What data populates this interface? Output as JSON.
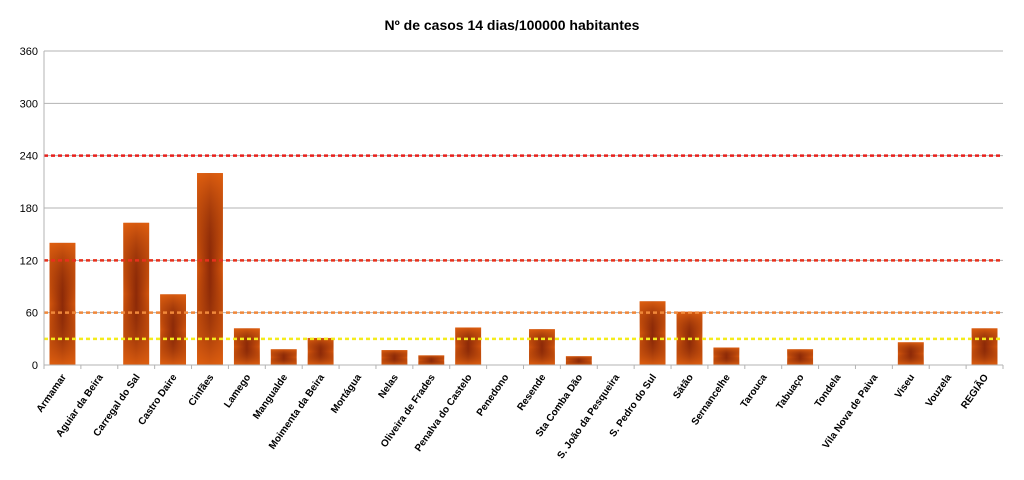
{
  "chart_data": {
    "type": "bar",
    "title": "Nº de casos 14 dias/100000 habitantes",
    "xlabel": "",
    "ylabel": "",
    "ylim": [
      0,
      360
    ],
    "yticks": [
      0,
      60,
      120,
      180,
      240,
      300,
      360
    ],
    "grid": true,
    "categories": [
      "Armamar",
      "Aguiar da Beira",
      "Carregal do Sal",
      "Castro Daire",
      "Cinfães",
      "Lamego",
      "Mangualde",
      "Moimenta da Beira",
      "Mortágua",
      "Nelas",
      "Oliveira de Frades",
      "Penalva do Castelo",
      "Penedono",
      "Resende",
      "Sta Comba Dão",
      "S. João da Pesqueira",
      "S. Pedro do Sul",
      "Sátão",
      "Sernancelhe",
      "Tarouca",
      "Tabuaço",
      "Tondela",
      "Vila Nova de Paiva",
      "Viseu",
      "Vouzela",
      "REGIÃO"
    ],
    "values": [
      140,
      0,
      163,
      81,
      220,
      42,
      18,
      31,
      0,
      17,
      11,
      43,
      0,
      41,
      10,
      0,
      73,
      61,
      20,
      0,
      18,
      0,
      0,
      26,
      0,
      42
    ],
    "bar_color": "#c8480a",
    "threshold_lines": [
      {
        "value": 240,
        "color": "#e8201c"
      },
      {
        "value": 120,
        "color": "#e8301c"
      },
      {
        "value": 60,
        "color": "#f0883a"
      },
      {
        "value": 30,
        "color": "#f4ec1c"
      }
    ]
  }
}
